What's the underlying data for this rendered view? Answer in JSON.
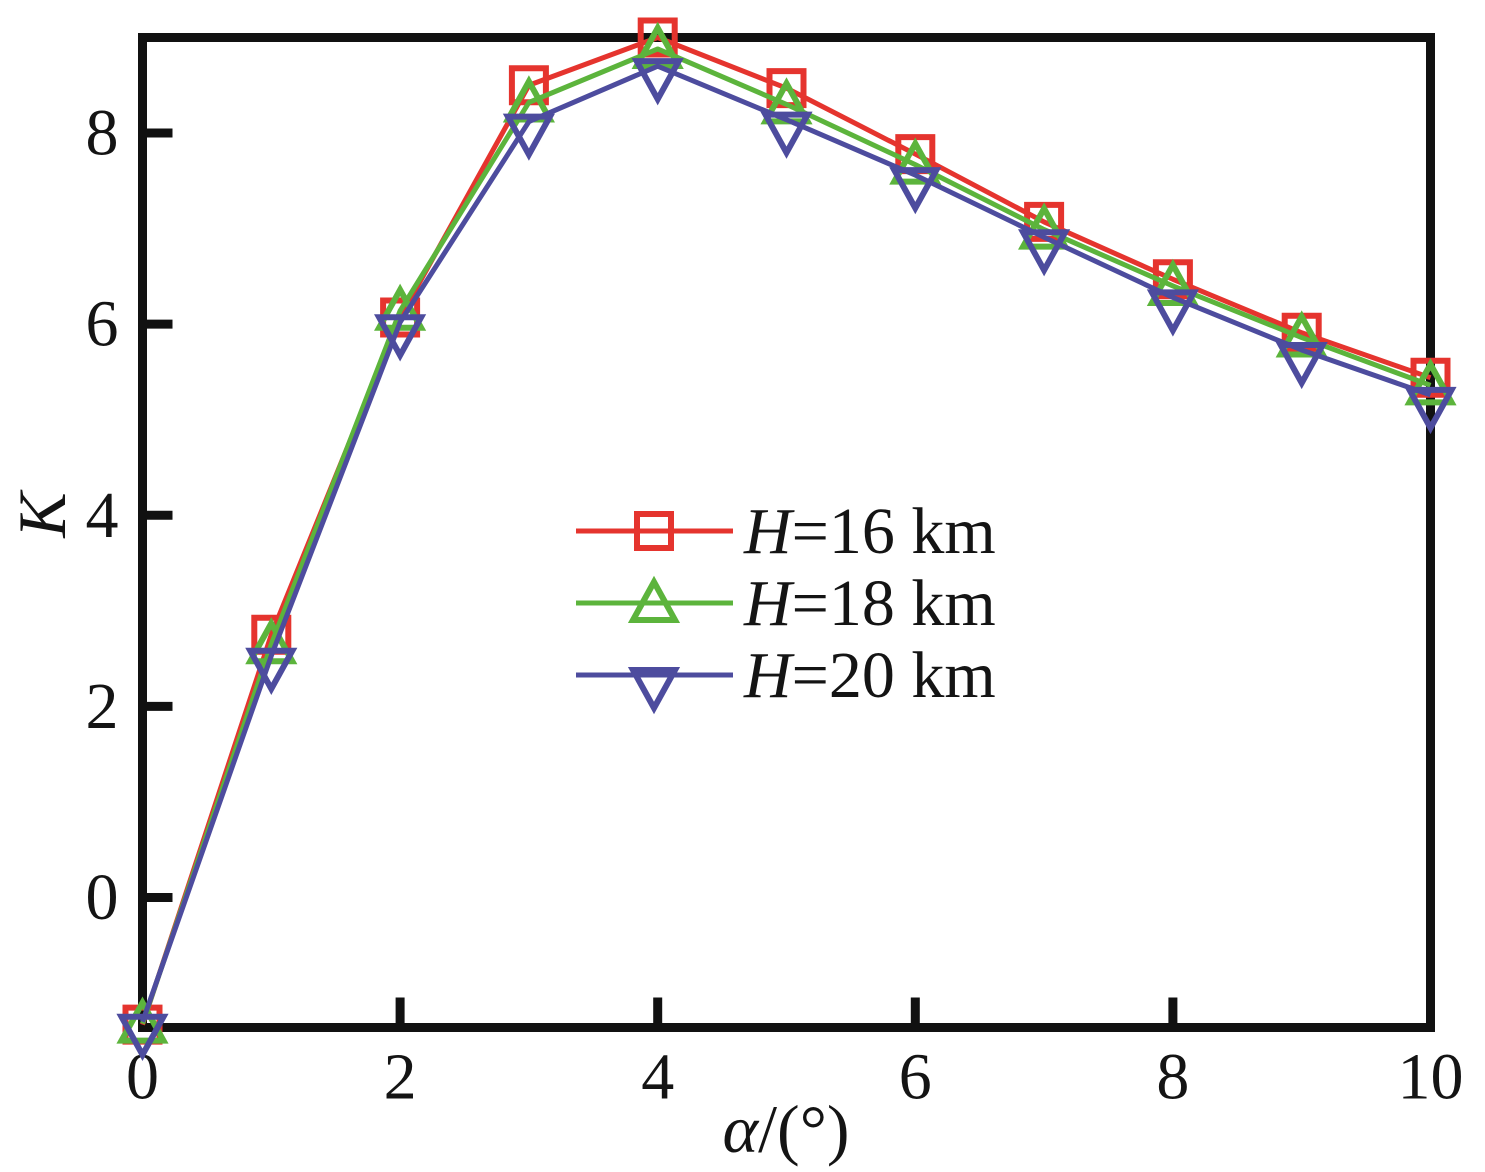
{
  "figure": {
    "background": "#ffffff",
    "axis_color": "#111111",
    "text_color": "#141414"
  },
  "chart_data": {
    "type": "line",
    "title": "",
    "xlabel": "α/(°)",
    "xlabel_var": "α",
    "xlabel_rest": "/(°)",
    "ylabel": "K",
    "xlim": [
      0,
      10
    ],
    "ylim": [
      -1.36,
      9.0
    ],
    "xticks": [
      0,
      2,
      4,
      6,
      8,
      10
    ],
    "yticks": [
      0,
      2,
      4,
      6,
      8
    ],
    "grid": false,
    "legend_position": "inside center-left, no frame",
    "x": [
      0,
      1,
      2,
      3,
      4,
      5,
      6,
      7,
      8,
      9,
      10
    ],
    "series": [
      {
        "name": "H=16 km",
        "label_var": "H",
        "label_rest": "=16 km",
        "color": "#e5342e",
        "marker": "square-open",
        "values": [
          -1.33,
          2.75,
          6.07,
          8.5,
          9.0,
          8.47,
          7.78,
          7.07,
          6.47,
          5.91,
          5.44
        ]
      },
      {
        "name": "H=18 km",
        "label_var": "H",
        "label_rest": "=18 km",
        "color": "#5cb43c",
        "marker": "triangle-up-open",
        "values": [
          -1.32,
          2.65,
          6.14,
          8.32,
          8.88,
          8.3,
          7.67,
          6.99,
          6.4,
          5.86,
          5.36
        ]
      },
      {
        "name": "H=20 km",
        "label_var": "H",
        "label_rest": "=20 km",
        "color": "#4d4c9e",
        "marker": "triangle-down-open",
        "values": [
          -1.3,
          2.53,
          6.02,
          8.12,
          8.7,
          8.14,
          7.56,
          6.91,
          6.28,
          5.73,
          5.26
        ]
      }
    ]
  }
}
